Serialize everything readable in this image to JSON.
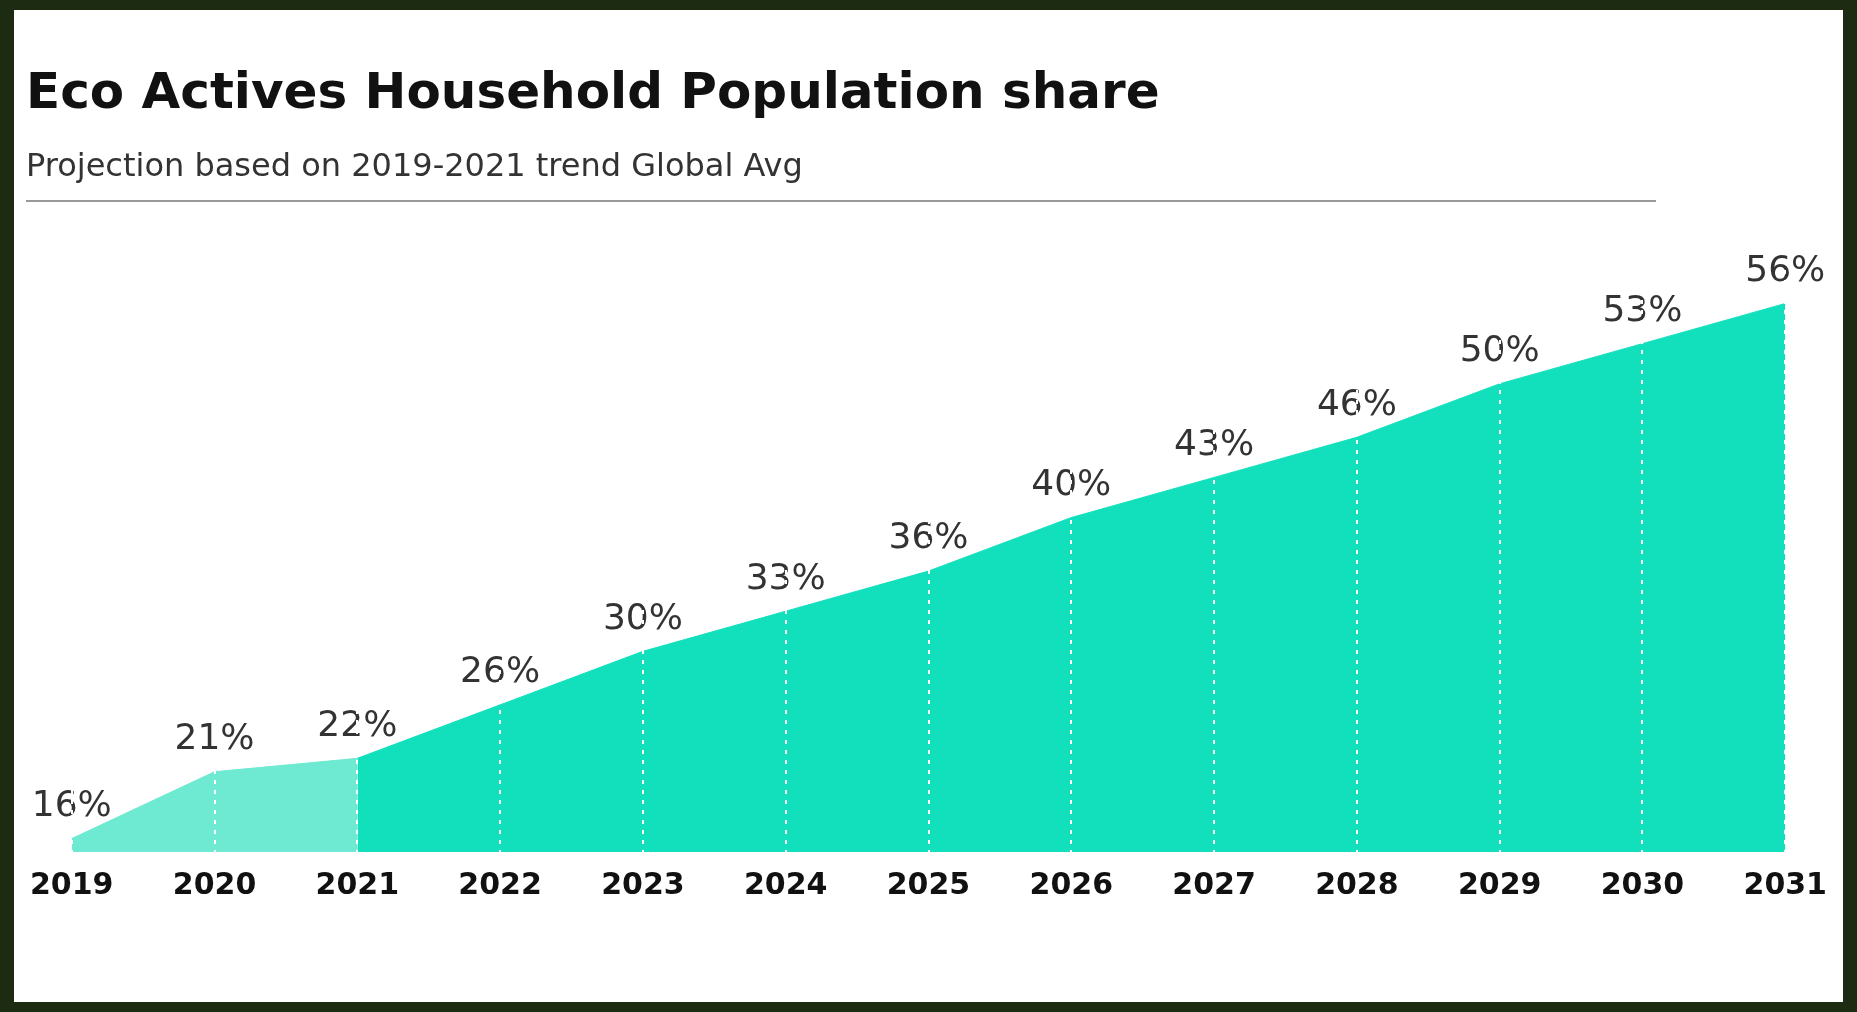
{
  "chart_data": {
    "type": "area",
    "title": "Eco Actives Household Population share",
    "subtitle": "Projection based on 2019-2021 trend Global Avg",
    "categories": [
      "2019",
      "2020",
      "2021",
      "2022",
      "2023",
      "2024",
      "2025",
      "2026",
      "2027",
      "2028",
      "2029",
      "2030",
      "2031"
    ],
    "series": [
      {
        "color": "#6ee9d2",
        "values": [
          16,
          21,
          22,
          null,
          null,
          null,
          null,
          null,
          null,
          null,
          null,
          null,
          null
        ],
        "value_labels": [
          "16%",
          "21%",
          "22%",
          null,
          null,
          null,
          null,
          null,
          null,
          null,
          null,
          null,
          null
        ]
      },
      {
        "color": "#12e0bd",
        "values": [
          null,
          null,
          22,
          26,
          30,
          33,
          36,
          40,
          43,
          46,
          50,
          53,
          56
        ],
        "value_labels": [
          null,
          null,
          null,
          "26%",
          "30%",
          "33%",
          "36%",
          "40%",
          "43%",
          "46%",
          "50%",
          "53%",
          "56%"
        ]
      }
    ],
    "grid": "x",
    "line_style": "dashed"
  }
}
